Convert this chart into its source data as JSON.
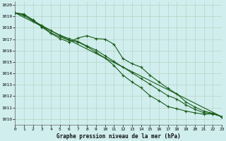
{
  "title": "Graphe pression niveau de la mer (hPa)",
  "bg_color": "#d0eeee",
  "grid_color": "#b0ccb8",
  "line_color": "#1a5c1a",
  "xlim": [
    0,
    23
  ],
  "ylim": [
    1009.5,
    1020.3
  ],
  "xticks": [
    0,
    1,
    2,
    3,
    4,
    5,
    6,
    7,
    8,
    9,
    10,
    11,
    12,
    13,
    14,
    15,
    16,
    17,
    18,
    19,
    20,
    21,
    22,
    23
  ],
  "yticks": [
    1010,
    1011,
    1012,
    1013,
    1014,
    1015,
    1016,
    1017,
    1018,
    1019,
    1020
  ],
  "series1": [
    1019.3,
    1019.2,
    1018.65,
    1018.05,
    1017.5,
    1017.05,
    1016.75,
    1017.1,
    1017.3,
    1017.05,
    1017.0,
    1016.55,
    1015.3,
    1014.85,
    1014.55,
    1013.85,
    1013.25,
    1012.7,
    1012.2,
    1011.5,
    1011.05,
    1010.7,
    1010.5,
    1010.2
  ],
  "series2": [
    1019.3,
    1019.15,
    1018.7,
    1018.1,
    1017.55,
    1017.2,
    1016.9,
    1016.75,
    1016.35,
    1015.85,
    1015.35,
    1014.7,
    1013.85,
    1013.25,
    1012.75,
    1012.05,
    1011.6,
    1011.1,
    1010.9,
    1010.7,
    1010.55,
    1010.42,
    1010.45,
    1010.2
  ],
  "series3": [
    1019.3,
    1019.05,
    1018.6,
    1018.2,
    1017.75,
    1017.35,
    1017.05,
    1016.8,
    1016.4,
    1016.05,
    1015.55,
    1015.05,
    1014.55,
    1014.05,
    1013.55,
    1013.05,
    1012.55,
    1012.05,
    1011.75,
    1011.25,
    1010.85,
    1010.55,
    1010.5,
    1010.2
  ],
  "series_trend": [
    1019.3,
    1010.2
  ],
  "trend_x": [
    0,
    23
  ],
  "lw": 0.8,
  "marker_size": 2.5,
  "xlabel_fontsize": 5.5,
  "tick_fontsize": 4.5
}
